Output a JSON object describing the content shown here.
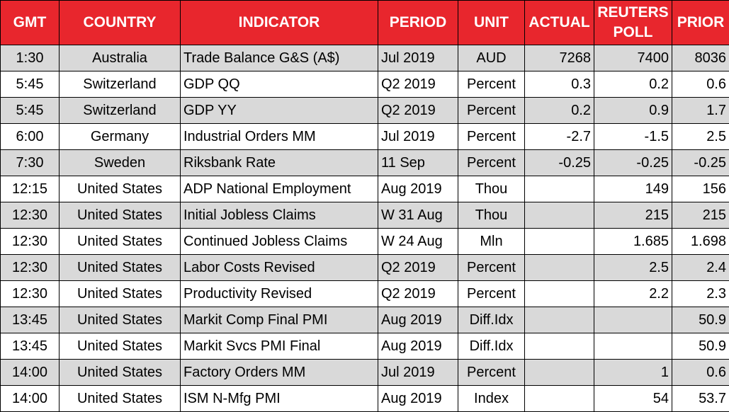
{
  "table": {
    "header": [
      "GMT",
      "COUNTRY",
      "INDICATOR",
      "PERIOD",
      "UNIT",
      "ACTUAL",
      "REUTERS POLL",
      "PRIOR"
    ],
    "rows": [
      [
        "1:30",
        "Australia",
        "Trade Balance G&S (A$)",
        "Jul 2019",
        "AUD",
        "7268",
        "7400",
        "8036"
      ],
      [
        "5:45",
        "Switzerland",
        "GDP QQ",
        "Q2 2019",
        "Percent",
        "0.3",
        "0.2",
        "0.6"
      ],
      [
        "5:45",
        "Switzerland",
        "GDP YY",
        "Q2 2019",
        "Percent",
        "0.2",
        "0.9",
        "1.7"
      ],
      [
        "6:00",
        "Germany",
        "Industrial Orders MM",
        "Jul 2019",
        "Percent",
        "-2.7",
        "-1.5",
        "2.5"
      ],
      [
        "7:30",
        "Sweden",
        "Riksbank Rate",
        "11 Sep",
        "Percent",
        "-0.25",
        "-0.25",
        "-0.25"
      ],
      [
        "12:15",
        "United States",
        "ADP National Employment",
        "Aug 2019",
        "Thou",
        null,
        "149",
        "156"
      ],
      [
        "12:30",
        "United States",
        "Initial Jobless Claims",
        "W 31 Aug",
        "Thou",
        null,
        "215",
        "215"
      ],
      [
        "12:30",
        "United States",
        "Continued Jobless Claims",
        "W 24 Aug",
        "Mln",
        null,
        "1.685",
        "1.698"
      ],
      [
        "12:30",
        "United States",
        "Labor Costs Revised",
        "Q2 2019",
        "Percent",
        null,
        "2.5",
        "2.4"
      ],
      [
        "12:30",
        "United States",
        "Productivity Revised",
        "Q2 2019",
        "Percent",
        null,
        "2.2",
        "2.3"
      ],
      [
        "13:45",
        "United States",
        "Markit Comp Final PMI",
        "Aug 2019",
        "Diff.Idx",
        null,
        null,
        "50.9"
      ],
      [
        "13:45",
        "United States",
        "Markit Svcs PMI Final",
        "Aug 2019",
        "Diff.Idx",
        null,
        null,
        "50.9"
      ],
      [
        "14:00",
        "United States",
        "Factory Orders MM",
        "Jul 2019",
        "Percent",
        null,
        "1",
        "0.6"
      ],
      [
        "14:00",
        "United States",
        "ISM N-Mfg PMI",
        "Aug 2019",
        "Index",
        null,
        "54",
        "53.7"
      ]
    ]
  }
}
